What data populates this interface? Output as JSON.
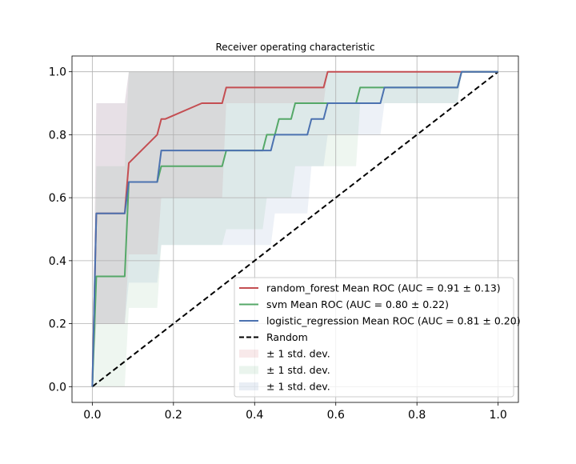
{
  "chart_data": {
    "type": "line",
    "title": "Receiver operating characteristic",
    "xlabel": "",
    "ylabel": "",
    "xlim": [
      -0.05,
      1.05
    ],
    "ylim": [
      -0.05,
      1.05
    ],
    "xticks": [
      0.0,
      0.2,
      0.4,
      0.6,
      0.8,
      1.0
    ],
    "yticks": [
      0.0,
      0.2,
      0.4,
      0.6,
      0.8,
      1.0
    ],
    "xtick_labels": [
      "0.0",
      "0.2",
      "0.4",
      "0.6",
      "0.8",
      "1.0"
    ],
    "ytick_labels": [
      "0.0",
      "0.2",
      "0.4",
      "0.6",
      "0.8",
      "1.0"
    ],
    "grid": true,
    "legend_position": "lower-right",
    "series": [
      {
        "name": "random_forest Mean ROC (AUC = 0.91 ± 0.13)",
        "color": "#c44e52",
        "points": [
          [
            0.0,
            0.0
          ],
          [
            0.01,
            0.55
          ],
          [
            0.08,
            0.55
          ],
          [
            0.09,
            0.71
          ],
          [
            0.16,
            0.8
          ],
          [
            0.17,
            0.85
          ],
          [
            0.18,
            0.85
          ],
          [
            0.27,
            0.9
          ],
          [
            0.32,
            0.9
          ],
          [
            0.33,
            0.95
          ],
          [
            0.57,
            0.95
          ],
          [
            0.58,
            1.0
          ],
          [
            1.0,
            1.0
          ]
        ],
        "std_lower": [
          [
            0.0,
            0.0
          ],
          [
            0.01,
            0.2
          ],
          [
            0.08,
            0.2
          ],
          [
            0.09,
            0.42
          ],
          [
            0.16,
            0.42
          ],
          [
            0.17,
            0.6
          ],
          [
            0.27,
            0.6
          ],
          [
            0.32,
            0.6
          ],
          [
            0.33,
            0.9
          ],
          [
            0.57,
            0.9
          ],
          [
            0.58,
            1.0
          ],
          [
            1.0,
            1.0
          ]
        ],
        "std_upper": [
          [
            0.0,
            0.0
          ],
          [
            0.01,
            0.9
          ],
          [
            0.08,
            0.9
          ],
          [
            0.09,
            1.0
          ],
          [
            1.0,
            1.0
          ]
        ]
      },
      {
        "name": "svm Mean ROC (AUC = 0.80 ± 0.22)",
        "color": "#55a868",
        "points": [
          [
            0.0,
            0.0
          ],
          [
            0.01,
            0.35
          ],
          [
            0.08,
            0.35
          ],
          [
            0.09,
            0.65
          ],
          [
            0.16,
            0.65
          ],
          [
            0.17,
            0.7
          ],
          [
            0.32,
            0.7
          ],
          [
            0.33,
            0.75
          ],
          [
            0.42,
            0.75
          ],
          [
            0.43,
            0.8
          ],
          [
            0.45,
            0.8
          ],
          [
            0.46,
            0.85
          ],
          [
            0.49,
            0.85
          ],
          [
            0.5,
            0.9
          ],
          [
            0.65,
            0.9
          ],
          [
            0.66,
            0.95
          ],
          [
            0.9,
            0.95
          ],
          [
            0.91,
            1.0
          ],
          [
            1.0,
            1.0
          ]
        ],
        "std_lower": [
          [
            0.0,
            0.0
          ],
          [
            0.01,
            0.0
          ],
          [
            0.08,
            0.0
          ],
          [
            0.09,
            0.25
          ],
          [
            0.16,
            0.25
          ],
          [
            0.17,
            0.45
          ],
          [
            0.32,
            0.45
          ],
          [
            0.33,
            0.5
          ],
          [
            0.42,
            0.5
          ],
          [
            0.43,
            0.6
          ],
          [
            0.45,
            0.6
          ],
          [
            0.46,
            0.6
          ],
          [
            0.49,
            0.6
          ],
          [
            0.5,
            0.7
          ],
          [
            0.65,
            0.7
          ],
          [
            0.66,
            0.9
          ],
          [
            0.9,
            0.9
          ],
          [
            0.91,
            1.0
          ],
          [
            1.0,
            1.0
          ]
        ],
        "std_upper": [
          [
            0.0,
            0.0
          ],
          [
            0.01,
            0.7
          ],
          [
            0.08,
            0.7
          ],
          [
            0.09,
            1.0
          ],
          [
            1.0,
            1.0
          ]
        ]
      },
      {
        "name": "logistic_regression Mean ROC (AUC = 0.81 ± 0.20)",
        "color": "#4c72b0",
        "points": [
          [
            0.0,
            0.0
          ],
          [
            0.01,
            0.55
          ],
          [
            0.08,
            0.55
          ],
          [
            0.09,
            0.65
          ],
          [
            0.16,
            0.65
          ],
          [
            0.17,
            0.75
          ],
          [
            0.44,
            0.75
          ],
          [
            0.45,
            0.8
          ],
          [
            0.53,
            0.8
          ],
          [
            0.54,
            0.85
          ],
          [
            0.57,
            0.85
          ],
          [
            0.58,
            0.9
          ],
          [
            0.71,
            0.9
          ],
          [
            0.72,
            0.95
          ],
          [
            0.9,
            0.95
          ],
          [
            0.91,
            1.0
          ],
          [
            1.0,
            1.0
          ]
        ],
        "std_lower": [
          [
            0.0,
            0.0
          ],
          [
            0.01,
            0.2
          ],
          [
            0.08,
            0.2
          ],
          [
            0.09,
            0.33
          ],
          [
            0.16,
            0.33
          ],
          [
            0.17,
            0.45
          ],
          [
            0.44,
            0.45
          ],
          [
            0.45,
            0.55
          ],
          [
            0.53,
            0.55
          ],
          [
            0.54,
            0.7
          ],
          [
            0.57,
            0.7
          ],
          [
            0.58,
            0.8
          ],
          [
            0.71,
            0.8
          ],
          [
            0.72,
            0.9
          ],
          [
            0.9,
            0.9
          ],
          [
            0.91,
            1.0
          ],
          [
            1.0,
            1.0
          ]
        ],
        "std_upper": [
          [
            0.0,
            0.0
          ],
          [
            0.01,
            0.9
          ],
          [
            0.08,
            0.9
          ],
          [
            0.09,
            1.0
          ],
          [
            1.0,
            1.0
          ]
        ]
      }
    ],
    "reference_line": {
      "name": "Random",
      "points": [
        [
          0.0,
          0.0
        ],
        [
          1.0,
          1.0
        ]
      ],
      "style": "dashed",
      "color": "#000000"
    },
    "std_band_label": "± 1 std. dev."
  }
}
